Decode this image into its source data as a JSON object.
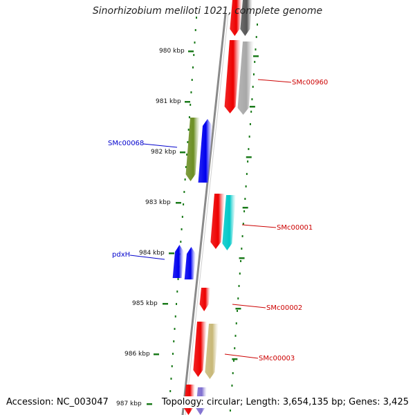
{
  "header": {
    "title": "Sinorhizobium meliloti 1021, complete genome"
  },
  "footer": {
    "accession": "Accession: NC_003047",
    "summary": "Topology: circular; Length: 3,654,135 bp; Genes: 3,425"
  },
  "scale": {
    "unit": "kbp",
    "tick_color": "#1a7a1a",
    "labels": [
      "980 kbp",
      "981 kbp",
      "982 kbp",
      "983 kbp",
      "984 kbp",
      "985 kbp",
      "986 kbp",
      "987 kbp"
    ]
  },
  "genes": {
    "forward_labels": [
      {
        "name": "SMc00068",
        "color": "#0000cc"
      },
      {
        "name": "pdxH",
        "color": "#0000cc"
      }
    ],
    "reverse_labels": [
      {
        "name": "SMc00960",
        "color": "#cc0000"
      },
      {
        "name": "SMc00001",
        "color": "#cc0000"
      },
      {
        "name": "SMc00002",
        "color": "#cc0000"
      },
      {
        "name": "SMc00003",
        "color": "#cc0000"
      }
    ]
  },
  "colors": {
    "backbone": "#8a8a8a",
    "cds_red": "#ee0000",
    "cds_blue": "#0000ee",
    "cog_olive": "#6b8e23",
    "cog_cyan": "#00c8c8",
    "cog_khaki": "#c8b878",
    "cog_gray": "#a8a8a8",
    "cog_dark": "#555555",
    "cog_purple": "#8070d0"
  }
}
